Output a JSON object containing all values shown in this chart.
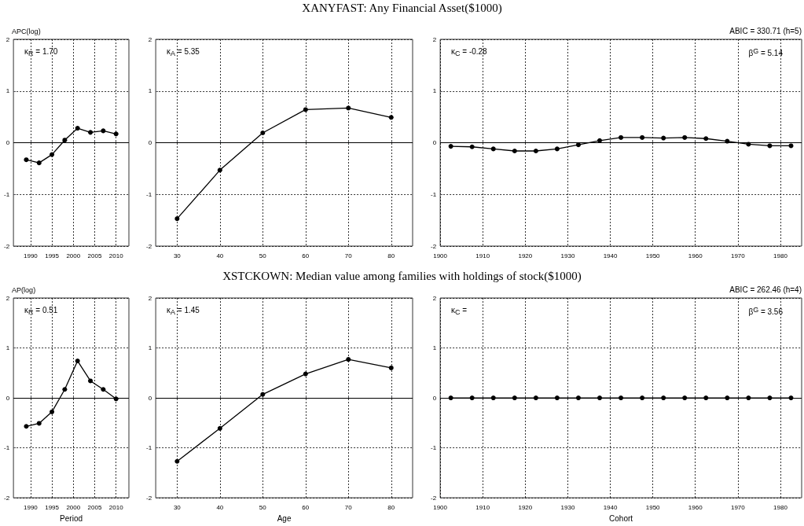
{
  "chart_data": [
    {
      "type": "line",
      "ylabel": "APC(log)",
      "x": [
        1989,
        1992,
        1995,
        1998,
        2001,
        2004,
        2007,
        2010
      ],
      "values": [
        -0.33,
        -0.39,
        -0.23,
        0.05,
        0.28,
        0.2,
        0.23,
        0.17
      ],
      "color": "#000000",
      "xlim": [
        1986,
        2013
      ],
      "xticks": [
        1990,
        1995,
        2000,
        2005,
        2010
      ],
      "ylim": [
        -2,
        2
      ],
      "yticks": [
        -2,
        -1,
        0,
        1,
        2
      ],
      "grid": true,
      "marker": "circle",
      "ref_lines": [
        {
          "axis": "y",
          "value": 0,
          "color": "#000000"
        }
      ],
      "annotations": [
        "κ$_{R}$ = 1.70"
      ]
    },
    {
      "type": "line",
      "title": "XANYFAST: Any Financial Asset($1000)",
      "x": [
        30,
        40,
        50,
        60,
        70,
        80
      ],
      "values": [
        -1.47,
        -0.53,
        0.19,
        0.64,
        0.67,
        0.49
      ],
      "color": "#000000",
      "xlim": [
        25,
        85
      ],
      "xticks": [
        30,
        40,
        50,
        60,
        70,
        80
      ],
      "ylim": [
        -2,
        2
      ],
      "yticks": [
        -2,
        -1,
        0,
        1,
        2
      ],
      "grid": true,
      "marker": "circle",
      "ref_lines": [
        {
          "axis": "y",
          "value": 0,
          "color": "#000000"
        }
      ],
      "annotations": [
        "κ$_{A}$ = 5.35"
      ]
    },
    {
      "type": "line",
      "x": [
        1902.5,
        1907.5,
        1912.5,
        1917.5,
        1922.5,
        1927.5,
        1932.5,
        1937.5,
        1942.5,
        1947.5,
        1952.5,
        1957.5,
        1962.5,
        1967.5,
        1972.5,
        1977.5,
        1982.5
      ],
      "values": [
        -0.07,
        -0.08,
        -0.12,
        -0.16,
        -0.16,
        -0.12,
        -0.04,
        0.04,
        0.1,
        0.1,
        0.09,
        0.1,
        0.08,
        0.03,
        -0.03,
        -0.06,
        -0.06
      ],
      "color": "#000000",
      "xlim": [
        1900,
        1985
      ],
      "xticks": [
        1900,
        1910,
        1920,
        1930,
        1940,
        1950,
        1960,
        1970,
        1980
      ],
      "ylim": [
        -2,
        2
      ],
      "yticks": [
        -2,
        -1,
        0,
        1,
        2
      ],
      "grid": true,
      "marker": "circle",
      "ref_lines": [
        {
          "axis": "y",
          "value": 0,
          "color": "#000000"
        }
      ],
      "annotations": [
        "κ$_{C}$ = -0.28",
        "β$^{G}$ = 5.14",
        "ABIC = 330.71 (h=5)"
      ]
    },
    {
      "type": "line",
      "ylabel": "AP(log)",
      "xlabel": "Period",
      "x": [
        1989,
        1992,
        1995,
        1998,
        2001,
        2004,
        2007,
        2010
      ],
      "values": [
        -0.57,
        -0.51,
        -0.28,
        0.17,
        0.74,
        0.34,
        0.17,
        -0.02
      ],
      "color": "#000000",
      "xlim": [
        1986,
        2013
      ],
      "xticks": [
        1990,
        1995,
        2000,
        2005,
        2010
      ],
      "ylim": [
        -2,
        2
      ],
      "yticks": [
        -2,
        -1,
        0,
        1,
        2
      ],
      "grid": true,
      "marker": "circle",
      "ref_lines": [
        {
          "axis": "y",
          "value": 0,
          "color": "#000000"
        }
      ],
      "annotations": [
        "κ$_{R}$ = 0.51"
      ]
    },
    {
      "type": "line",
      "title": "XSTCKOWN: Median value among families with holdings of stock($1000)",
      "xlabel": "Age",
      "x": [
        30,
        40,
        50,
        60,
        70,
        80
      ],
      "values": [
        -1.27,
        -0.61,
        0.07,
        0.48,
        0.77,
        0.6
      ],
      "color": "#000000",
      "xlim": [
        25,
        85
      ],
      "xticks": [
        30,
        40,
        50,
        60,
        70,
        80
      ],
      "ylim": [
        -2,
        2
      ],
      "yticks": [
        -2,
        -1,
        0,
        1,
        2
      ],
      "grid": true,
      "marker": "circle",
      "ref_lines": [
        {
          "axis": "y",
          "value": 0,
          "color": "#000000"
        }
      ],
      "annotations": [
        "κ$_{A}$ = 1.45"
      ]
    },
    {
      "type": "line",
      "xlabel": "Cohort",
      "x": [
        1902.5,
        1907.5,
        1912.5,
        1917.5,
        1922.5,
        1927.5,
        1932.5,
        1937.5,
        1942.5,
        1947.5,
        1952.5,
        1957.5,
        1962.5,
        1967.5,
        1972.5,
        1977.5,
        1982.5
      ],
      "values": [
        0,
        0,
        0,
        0,
        0,
        0,
        0,
        0,
        0,
        0,
        0,
        0,
        0,
        0,
        0,
        0,
        0
      ],
      "color": "#000000",
      "xlim": [
        1900,
        1985
      ],
      "xticks": [
        1900,
        1910,
        1920,
        1930,
        1940,
        1950,
        1960,
        1970,
        1980
      ],
      "ylim": [
        -2,
        2
      ],
      "yticks": [
        -2,
        -1,
        0,
        1,
        2
      ],
      "grid": true,
      "marker": "circle",
      "ref_lines": [
        {
          "axis": "y",
          "value": 0,
          "color": "#000000"
        }
      ],
      "annotations": [
        "κ$_{C}$ =",
        "β$^{G}$ = 3.56",
        "ABIC = 262.46 (h=4)"
      ]
    }
  ]
}
